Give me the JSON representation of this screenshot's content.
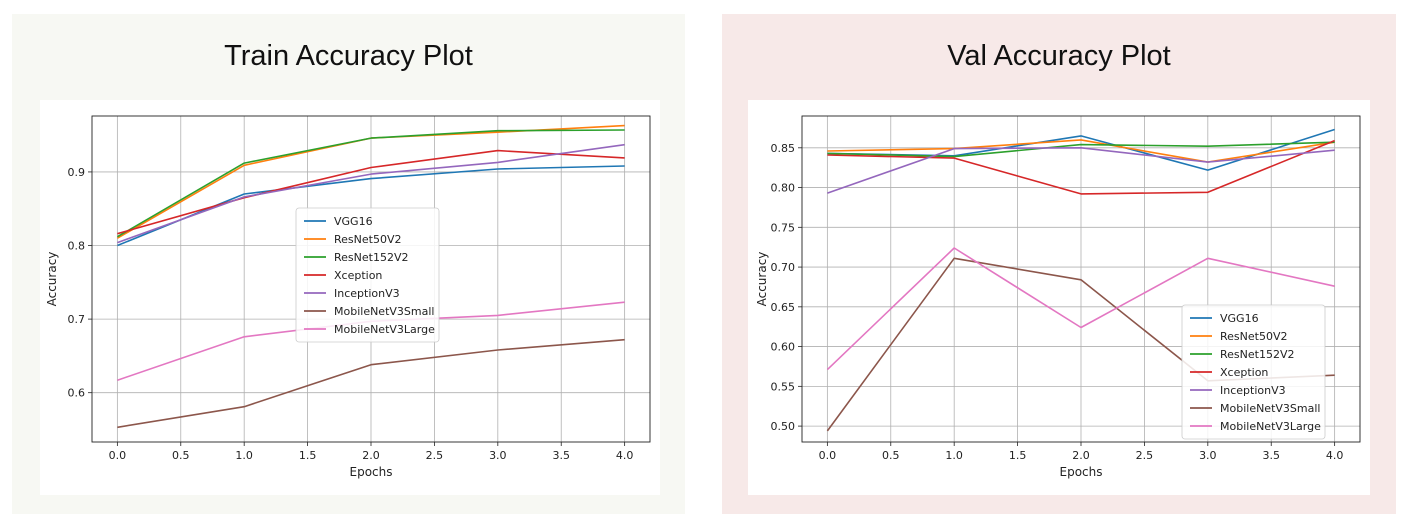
{
  "colors": {
    "VGG16": "#1f77b4",
    "ResNet50V2": "#ff7f0e",
    "ResNet152V2": "#2ca02c",
    "Xception": "#d62728",
    "InceptionV3": "#9467bd",
    "MobileNetV3Small": "#8c564b",
    "MobileNetV3Large": "#e377c2"
  },
  "chart_data": [
    {
      "type": "line",
      "title": "Train Accuracy Plot",
      "xlabel": "Epochs",
      "ylabel": "Accuracy",
      "x": [
        0,
        1,
        2,
        3,
        4
      ],
      "xticks": [
        "0.0",
        "0.5",
        "1.0",
        "1.5",
        "2.0",
        "2.5",
        "3.0",
        "3.5",
        "4.0"
      ],
      "yticks": [
        "0.6",
        "0.7",
        "0.8",
        "0.9"
      ],
      "xlim": [
        -0.2,
        4.2
      ],
      "ylim": [
        0.533,
        0.976
      ],
      "grid": true,
      "legend_loc": "center",
      "series": [
        {
          "name": "VGG16",
          "values": [
            0.8,
            0.87,
            0.891,
            0.904,
            0.908
          ]
        },
        {
          "name": "ResNet50V2",
          "values": [
            0.81,
            0.909,
            0.946,
            0.954,
            0.963
          ]
        },
        {
          "name": "ResNet152V2",
          "values": [
            0.812,
            0.912,
            0.946,
            0.956,
            0.957
          ]
        },
        {
          "name": "Xception",
          "values": [
            0.816,
            0.865,
            0.906,
            0.929,
            0.919
          ]
        },
        {
          "name": "InceptionV3",
          "values": [
            0.804,
            0.866,
            0.897,
            0.913,
            0.937
          ]
        },
        {
          "name": "MobileNetV3Small",
          "values": [
            0.553,
            0.581,
            0.638,
            0.658,
            0.672
          ]
        },
        {
          "name": "MobileNetV3Large",
          "values": [
            0.617,
            0.676,
            0.697,
            0.705,
            0.723
          ]
        }
      ]
    },
    {
      "type": "line",
      "title": "Val Accuracy Plot",
      "xlabel": "Epochs",
      "ylabel": "Accuracy",
      "x": [
        0,
        1,
        2,
        3,
        4
      ],
      "xticks": [
        "0.0",
        "0.5",
        "1.0",
        "1.5",
        "2.0",
        "2.5",
        "3.0",
        "3.5",
        "4.0"
      ],
      "yticks": [
        "0.50",
        "0.55",
        "0.60",
        "0.65",
        "0.70",
        "0.75",
        "0.80",
        "0.85"
      ],
      "xlim": [
        -0.2,
        4.2
      ],
      "ylim": [
        0.48,
        0.89
      ],
      "grid": true,
      "legend_loc": "lower right",
      "series": [
        {
          "name": "VGG16",
          "values": [
            0.843,
            0.84,
            0.865,
            0.822,
            0.873
          ]
        },
        {
          "name": "ResNet50V2",
          "values": [
            0.846,
            0.849,
            0.86,
            0.832,
            0.857
          ]
        },
        {
          "name": "ResNet152V2",
          "values": [
            0.843,
            0.839,
            0.854,
            0.852,
            0.857
          ]
        },
        {
          "name": "Xception",
          "values": [
            0.841,
            0.837,
            0.792,
            0.794,
            0.859
          ]
        },
        {
          "name": "InceptionV3",
          "values": [
            0.793,
            0.849,
            0.85,
            0.832,
            0.847
          ]
        },
        {
          "name": "MobileNetV3Small",
          "values": [
            0.494,
            0.711,
            0.684,
            0.557,
            0.564
          ]
        },
        {
          "name": "MobileNetV3Large",
          "values": [
            0.571,
            0.724,
            0.624,
            0.711,
            0.676
          ]
        }
      ]
    }
  ]
}
